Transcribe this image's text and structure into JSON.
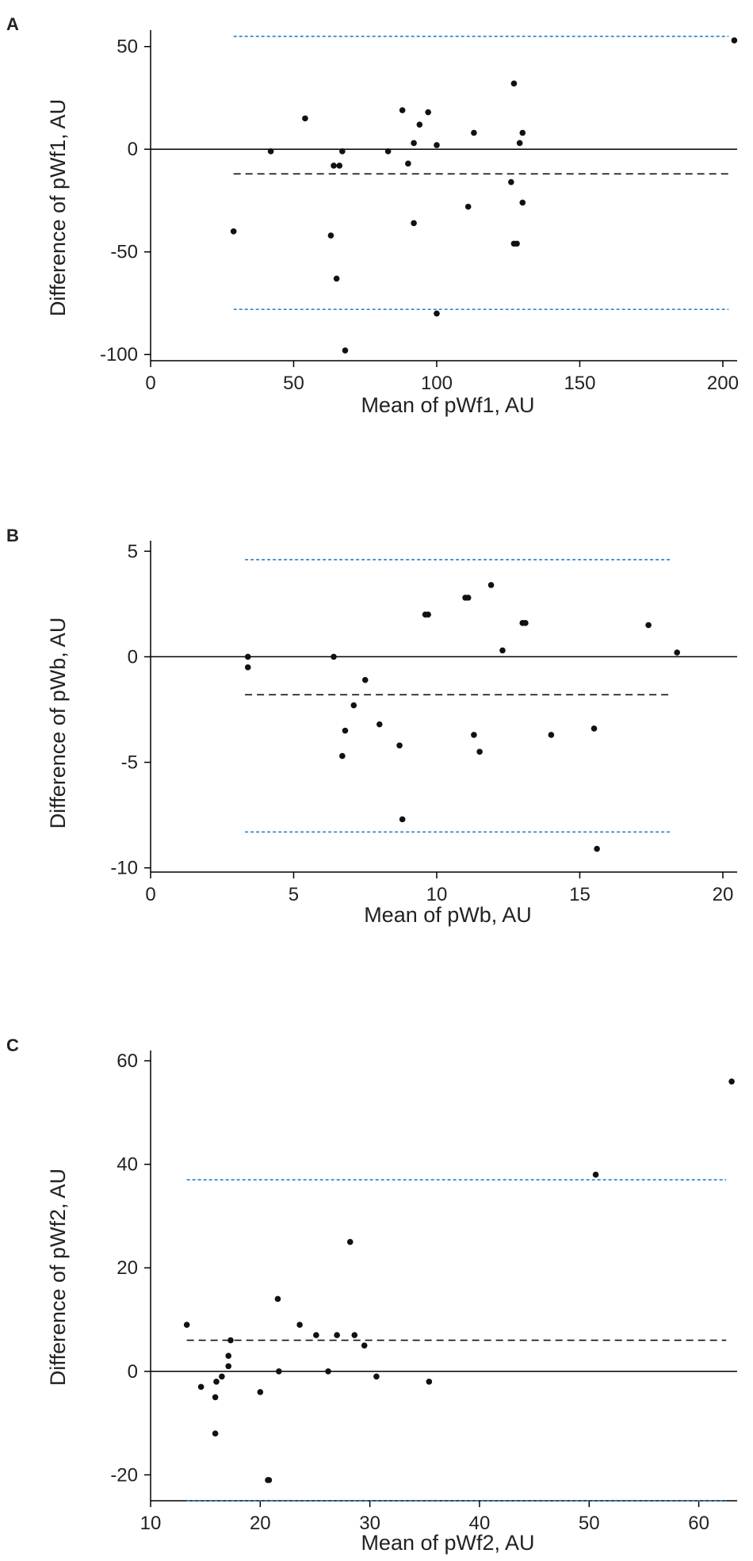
{
  "chart_data": [
    {
      "type": "scatter",
      "panel_label": "A",
      "title": "",
      "xlabel": "Mean of pWf1, AU",
      "ylabel": "Difference of pWf1, AU",
      "xlim": [
        0,
        205
      ],
      "ylim": [
        -103,
        58
      ],
      "xticks": [
        0,
        50,
        100,
        150,
        200
      ],
      "yticks": [
        50,
        0,
        -50,
        -100
      ],
      "grid": false,
      "zero_line": 0,
      "mean_difference": -12,
      "limits_of_agreement": [
        55,
        -78
      ],
      "reference_line_span": [
        29,
        202
      ],
      "points": [
        {
          "x": 29,
          "y": -40
        },
        {
          "x": 42,
          "y": -1
        },
        {
          "x": 54,
          "y": 15
        },
        {
          "x": 63,
          "y": -42
        },
        {
          "x": 64,
          "y": -8
        },
        {
          "x": 65,
          "y": -63
        },
        {
          "x": 66,
          "y": -8
        },
        {
          "x": 67,
          "y": -1
        },
        {
          "x": 68,
          "y": -98
        },
        {
          "x": 83,
          "y": -1
        },
        {
          "x": 88,
          "y": 19
        },
        {
          "x": 90,
          "y": -7
        },
        {
          "x": 92,
          "y": 3
        },
        {
          "x": 92,
          "y": -36
        },
        {
          "x": 94,
          "y": 12
        },
        {
          "x": 97,
          "y": 18
        },
        {
          "x": 100,
          "y": 2
        },
        {
          "x": 100,
          "y": -80
        },
        {
          "x": 111,
          "y": -28
        },
        {
          "x": 113,
          "y": 8
        },
        {
          "x": 126,
          "y": -16
        },
        {
          "x": 127,
          "y": -46
        },
        {
          "x": 127,
          "y": 32
        },
        {
          "x": 128,
          "y": -46
        },
        {
          "x": 129,
          "y": 3
        },
        {
          "x": 130,
          "y": -26
        },
        {
          "x": 130,
          "y": 8
        },
        {
          "x": 204,
          "y": 53
        }
      ]
    },
    {
      "type": "scatter",
      "panel_label": "B",
      "title": "",
      "xlabel": "Mean of pWb, AU",
      "ylabel": "Difference of pWb, AU",
      "xlim": [
        0,
        20.5
      ],
      "ylim": [
        -10.2,
        5.5
      ],
      "xticks": [
        0,
        5,
        10,
        15,
        20
      ],
      "yticks": [
        5,
        0,
        -5,
        -10
      ],
      "grid": false,
      "zero_line": 0,
      "mean_difference": -1.8,
      "limits_of_agreement": [
        4.6,
        -8.3
      ],
      "reference_line_span": [
        3.3,
        18.2
      ],
      "points": [
        {
          "x": 3.4,
          "y": 0
        },
        {
          "x": 3.4,
          "y": -0.5
        },
        {
          "x": 6.4,
          "y": 0
        },
        {
          "x": 6.7,
          "y": -4.7
        },
        {
          "x": 6.8,
          "y": -3.5
        },
        {
          "x": 7.1,
          "y": -2.3
        },
        {
          "x": 7.5,
          "y": -1.1
        },
        {
          "x": 8.0,
          "y": -3.2
        },
        {
          "x": 8.7,
          "y": -4.2
        },
        {
          "x": 8.8,
          "y": -7.7
        },
        {
          "x": 9.6,
          "y": 2.0
        },
        {
          "x": 9.7,
          "y": 2.0
        },
        {
          "x": 11.0,
          "y": 2.8
        },
        {
          "x": 11.1,
          "y": 2.8
        },
        {
          "x": 11.3,
          "y": -3.7
        },
        {
          "x": 11.5,
          "y": -4.5
        },
        {
          "x": 11.9,
          "y": 3.4
        },
        {
          "x": 12.3,
          "y": 0.3
        },
        {
          "x": 13.0,
          "y": 1.6
        },
        {
          "x": 13.1,
          "y": 1.6
        },
        {
          "x": 14.0,
          "y": -3.7
        },
        {
          "x": 15.5,
          "y": -3.4
        },
        {
          "x": 15.6,
          "y": -9.1
        },
        {
          "x": 17.4,
          "y": 1.5
        },
        {
          "x": 18.4,
          "y": 0.2
        }
      ]
    },
    {
      "type": "scatter",
      "panel_label": "C",
      "title": "",
      "xlabel": "Mean of pWf2, AU",
      "ylabel": "Difference of pWf2, AU",
      "xlim": [
        10,
        63.5
      ],
      "ylim": [
        -25,
        62
      ],
      "xticks": [
        10,
        20,
        30,
        40,
        50,
        60
      ],
      "yticks": [
        60,
        40,
        20,
        0,
        -20
      ],
      "grid": false,
      "zero_line": 0,
      "mean_difference": 6,
      "limits_of_agreement": [
        37,
        -25
      ],
      "reference_line_span": [
        13.3,
        62.5
      ],
      "points": [
        {
          "x": 13.3,
          "y": 9
        },
        {
          "x": 14.6,
          "y": -3
        },
        {
          "x": 15.9,
          "y": -12
        },
        {
          "x": 15.9,
          "y": -5
        },
        {
          "x": 16.0,
          "y": -2
        },
        {
          "x": 16.5,
          "y": -1
        },
        {
          "x": 17.1,
          "y": 3
        },
        {
          "x": 17.1,
          "y": 1
        },
        {
          "x": 17.3,
          "y": 6
        },
        {
          "x": 20.0,
          "y": -4
        },
        {
          "x": 20.7,
          "y": -21
        },
        {
          "x": 20.8,
          "y": -21
        },
        {
          "x": 21.6,
          "y": 14
        },
        {
          "x": 21.7,
          "y": 0
        },
        {
          "x": 23.6,
          "y": 9
        },
        {
          "x": 25.1,
          "y": 7
        },
        {
          "x": 26.2,
          "y": 0
        },
        {
          "x": 27.0,
          "y": 7
        },
        {
          "x": 28.2,
          "y": 25
        },
        {
          "x": 28.6,
          "y": 7
        },
        {
          "x": 29.5,
          "y": 5
        },
        {
          "x": 30.6,
          "y": -1
        },
        {
          "x": 35.4,
          "y": -2
        },
        {
          "x": 50.6,
          "y": 38
        },
        {
          "x": 63.0,
          "y": 56
        }
      ]
    }
  ],
  "colors": {
    "points": "#111111",
    "axis": "#000000",
    "mean_line": "#111111",
    "limit_lines": "#2a7fc4",
    "zero_line": "#000000"
  }
}
